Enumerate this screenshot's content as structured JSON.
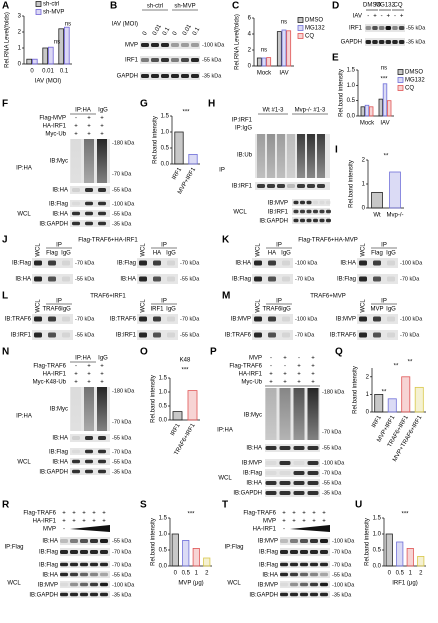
{
  "figure": {
    "panels": [
      {
        "letter": "A",
        "chart": {
          "type": "bar",
          "ylabel": "Rel.RNA Level(folds)",
          "xlabel": "IAV (MOI)",
          "categories": [
            "0",
            "0.01",
            "0.1"
          ],
          "series": [
            {
              "name": "sh-ctrl",
              "color": "#222222",
              "values": [
                0.3,
                1.0,
                2.2
              ]
            },
            {
              "name": "sh-MVP",
              "color": "#6f62d6",
              "values": [
                0.3,
                1.05,
                2.3
              ]
            }
          ],
          "ylim": [
            0,
            3
          ],
          "yticks": [
            0,
            1,
            2,
            3
          ],
          "annotations": [
            "ns",
            "ns"
          ]
        }
      },
      {
        "letter": "B",
        "labels": [
          "sh-ctrl",
          "sh-MVP",
          "IAV (MOI)",
          "0",
          "0.01",
          "0.1",
          "0",
          "0.01",
          "0.1",
          "MVP",
          "IRF1",
          "GAPDH",
          "-100 kDa",
          "-55 kDa",
          "-35 kDa"
        ]
      },
      {
        "letter": "C",
        "chart": {
          "type": "bar",
          "ylabel": "Rel.RNA Level(folds)",
          "categories": [
            "Mock",
            "IAV"
          ],
          "series": [
            {
              "name": "DMSO",
              "color": "#222222",
              "values": [
                1.0,
                4.3
              ]
            },
            {
              "name": "MG132",
              "color": "#6f6fd8",
              "values": [
                1.0,
                4.5
              ]
            },
            {
              "name": "CQ",
              "color": "#e05555",
              "values": [
                1.05,
                4.4
              ]
            }
          ],
          "ylim": [
            0,
            6
          ],
          "yticks": [
            0,
            2,
            4,
            6
          ],
          "annotations": [
            "ns",
            "ns"
          ]
        }
      },
      {
        "letter": "D",
        "labels": [
          "DMSO",
          "MG132",
          "CQ",
          "IAV",
          "-",
          "+",
          "-",
          "+",
          "-",
          "+",
          "IRF1",
          "GAPDH",
          "-55 kDa",
          "-35 kDa"
        ]
      },
      {
        "letter": "E",
        "chart": {
          "type": "bar",
          "ylabel": "Rel.band intensity",
          "categories": [
            "Mock",
            "IAV"
          ],
          "series": [
            {
              "name": "DMSO",
              "color": "#222222",
              "values": [
                0.3,
                0.55
              ]
            },
            {
              "name": "MG132",
              "color": "#6f6fd8",
              "values": [
                0.35,
                1.05
              ]
            },
            {
              "name": "CQ",
              "color": "#e05555",
              "values": [
                0.3,
                0.5
              ]
            }
          ],
          "ylim": [
            0,
            1.5
          ],
          "yticks": [
            {
              "value": 0,
              "label": "0.0"
            },
            0.5,
            {
              "value": 1,
              "label": "1.0"
            },
            1.5
          ],
          "annotations": [
            "***",
            "ns"
          ]
        }
      },
      {
        "letter": "F",
        "labels": [
          "IP:HA",
          "IgG",
          "Flag-MVP",
          "HA-IRF1",
          "Myc-Ub",
          "-",
          "+",
          "+",
          "+",
          "+",
          "+",
          "+",
          "+",
          "+",
          "IB:Myc",
          "IB:HA",
          "IB:Flag",
          "IB:HA",
          "IB:GAPDH",
          "IP:HA",
          "WCL",
          "-180 kDa",
          "-70 kDa",
          "-55 kDa",
          "-100 kDa",
          "-55 kDa",
          "-35 kDa"
        ]
      },
      {
        "letter": "G",
        "chart": {
          "type": "bar",
          "ylabel": "Rel.band intensity",
          "categories": [
            "IRF1",
            "MVP+IRF1"
          ],
          "series": [
            {
              "colors": [
                "#222222",
                "#6f6fd8"
              ],
              "values": [
                1.0,
                0.3
              ]
            }
          ],
          "ylim": [
            0,
            1.5
          ],
          "yticks": [
            {
              "value": 0,
              "label": "0.0"
            },
            0.5,
            {
              "value": 1,
              "label": "1.0"
            },
            1.5
          ],
          "annotations": [
            "***"
          ]
        }
      },
      {
        "letter": "H",
        "labels": [
          "Wt #1-3",
          "Mvp-/- #1-3",
          "IP:IRF1",
          "IP:IgG",
          "IB:Ub",
          "IB:IRF1",
          "IP",
          "IB:MVP",
          "IB:IRF1",
          "IB:GAPDH",
          "WCL"
        ]
      },
      {
        "letter": "I",
        "chart": {
          "type": "bar",
          "ylabel": "Rel.band intensity",
          "categories": [
            "Wt",
            "Mvp-/-"
          ],
          "series": [
            {
              "colors": [
                "#222222",
                "#6f6fd8"
              ],
              "values": [
                0.65,
                1.5
              ]
            }
          ],
          "ylim": [
            0,
            2
          ],
          "yticks": [
            0,
            1,
            2
          ],
          "annotations": [
            "**"
          ]
        }
      },
      {
        "letter": "J",
        "labels": [
          "Flag-TRAF6+HA-IRF1",
          "WCL",
          "IP",
          "Flag",
          "IgG",
          "IB:Flag",
          "IB:HA",
          "-70 kDa",
          "-55 kDa",
          "WCL",
          "IP",
          "HA",
          "IgG",
          "IB:Flag",
          "IB:HA",
          "-70 kDa",
          "-55 kDa"
        ]
      },
      {
        "letter": "K",
        "labels": [
          "Flag-TRAF6+HA-MVP",
          "WCL",
          "IP",
          "HA",
          "IgG",
          "IB:HA",
          "IB:Flag",
          "-100 kDa",
          "-70 kDa",
          "WCL",
          "IP",
          "Flag",
          "IgG",
          "IB:HA",
          "IB:Flag",
          "-100 kDa",
          "-70 kDa"
        ]
      },
      {
        "letter": "L",
        "labels": [
          "TRAF6+IRF1",
          "WCL",
          "IP",
          "TRAF6",
          "IgG",
          "IB:TRAF6",
          "IB:IRF1",
          "-70 kDa",
          "-55 kDa",
          "WCL",
          "IP",
          "IRF1",
          "IgG",
          "IB:TRAF6",
          "IB:IRF1",
          "-70 kDa",
          "-55 kDa"
        ]
      },
      {
        "letter": "M",
        "labels": [
          "TRAF6+MVP",
          "WCL",
          "IP",
          "TRAF6",
          "IgG",
          "IB:MVP",
          "IB:TRAF6",
          "-100 kDa",
          "-70 kDa",
          "WCL",
          "IP",
          "MVP",
          "IgG",
          "IB:MVP",
          "IB:TRAF6",
          "-100 kDa",
          "-70 kDa"
        ]
      },
      {
        "letter": "N",
        "labels": [
          "IP:HA",
          "IgG",
          "Flag-TRAF6",
          "HA-IRF1",
          "Myc-K48-Ub",
          "-",
          "+",
          "+",
          "+",
          "+",
          "+",
          "+",
          "+",
          "+",
          "IB:Myc",
          "IB:HA",
          "IB:Flag",
          "IB:HA",
          "IB:GAPDH",
          "IP:HA",
          "WCL",
          "-180 kDa",
          "-70 kDa",
          "-55 kDa",
          "-70 kDa",
          "-55 kDa",
          "-35 kDa"
        ]
      },
      {
        "letter": "O",
        "chart": {
          "type": "bar",
          "title": "K48",
          "ylabel": "Rel.band intensity",
          "categories": [
            "IRF1",
            "TRAF6+IRF1"
          ],
          "series": [
            {
              "colors": [
                "#222222",
                "#e05555"
              ],
              "values": [
                0.3,
                1.05
              ]
            }
          ],
          "ylim": [
            0,
            1.5
          ],
          "yticks": [
            {
              "value": 0,
              "label": "0.0"
            },
            0.5,
            {
              "value": 1,
              "label": "1.0"
            },
            1.5
          ],
          "annotations": [
            "***"
          ]
        }
      },
      {
        "letter": "P",
        "labels": [
          "MVP",
          "Flag-TRAF6",
          "HA-IRF1",
          "Myc-Ub",
          "-",
          "+",
          "-",
          "+",
          "-",
          "-",
          "+",
          "+",
          "+",
          "+",
          "+",
          "+",
          "+",
          "+",
          "+",
          "+",
          "IB:Myc",
          "IB:HA",
          "IP:HA",
          "IB:MVP",
          "IB:Flag",
          "IB:HA",
          "IB:GAPDH",
          "WCL",
          "-180 kDa",
          "-70 kDa",
          "-55 kDa",
          "-100 kDa",
          "-70 kDa",
          "-55 kDa",
          "-35 kDa"
        ]
      },
      {
        "letter": "Q",
        "chart": {
          "type": "bar",
          "ylabel": "Rel.band intensity",
          "categories": [
            "IRF1",
            "MVP+IRF1",
            "TRAF6+IRF1",
            "MVP+TRAF6+IRF1"
          ],
          "series": [
            {
              "colors": [
                "#222222",
                "#6f6fd8",
                "#e05555",
                "#d9c84a"
              ],
              "values": [
                1.0,
                0.75,
                2.0,
                1.4
              ]
            }
          ],
          "ylim": [
            0,
            2.5
          ],
          "yticks": [
            0,
            1,
            2
          ],
          "annotations": [
            "**",
            "**",
            "**"
          ]
        }
      },
      {
        "letter": "R",
        "labels": [
          "Flag-TRAF6",
          "HA-IRF1",
          "MVP",
          "+",
          "+",
          "+",
          "+",
          "+",
          "+",
          "+",
          "+",
          "+",
          "+",
          "-",
          "IP:Flag",
          "IB:HA",
          "IB:Flag",
          "WCL",
          "IB:Flag",
          "IB:HA",
          "IB:MVP",
          "IB:GAPDH",
          "-55 kDa",
          "-70 kDa",
          "-70 kDa",
          "-55 kDa",
          "-100 kDa",
          "-35 kDa"
        ]
      },
      {
        "letter": "S",
        "chart": {
          "type": "bar",
          "ylabel": "Rel.band intensity",
          "xlabel": "MVP (μg)",
          "categories": [
            "0",
            "0.5",
            "1",
            "2"
          ],
          "series": [
            {
              "colors": [
                "#222222",
                "#6f6fd8",
                "#e05555",
                "#d9c84a"
              ],
              "values": [
                1.0,
                0.8,
                0.55,
                0.25
              ]
            }
          ],
          "ylim": [
            0,
            1.5
          ],
          "yticks": [
            {
              "value": 0,
              "label": "0.0"
            },
            0.5,
            {
              "value": 1,
              "label": "1.0"
            },
            1.5
          ],
          "annotations": [
            "***"
          ]
        }
      },
      {
        "letter": "T",
        "labels": [
          "Flag-TRAF6",
          "MVP",
          "HA-IRF1",
          "+",
          "+",
          "+",
          "+",
          "+",
          "+",
          "+",
          "+",
          "+",
          "+",
          "-",
          "IP:Flag",
          "IB:MVP",
          "IB:Flag",
          "WCL",
          "IB:Flag",
          "IB:HA",
          "IB:MVP",
          "IB:GAPDH",
          "-100 kDa",
          "-70 kDa",
          "-70 kDa",
          "-55 kDa",
          "-100 kDa",
          "-35 kDa"
        ]
      },
      {
        "letter": "U",
        "chart": {
          "type": "bar",
          "ylabel": "Rel.band intensity",
          "xlabel": "IRF1 (μg)",
          "categories": [
            "0",
            "0.5",
            "1",
            "2"
          ],
          "series": [
            {
              "colors": [
                "#222222",
                "#6f6fd8",
                "#e05555",
                "#d9c84a"
              ],
              "values": [
                1.0,
                0.75,
                0.55,
                0.3
              ]
            }
          ],
          "ylim": [
            0,
            1.5
          ],
          "yticks": [
            {
              "value": 0,
              "label": "0.0"
            },
            0.5,
            {
              "value": 1,
              "label": "1.0"
            },
            1.5
          ],
          "annotations": [
            "***"
          ]
        }
      }
    ]
  }
}
